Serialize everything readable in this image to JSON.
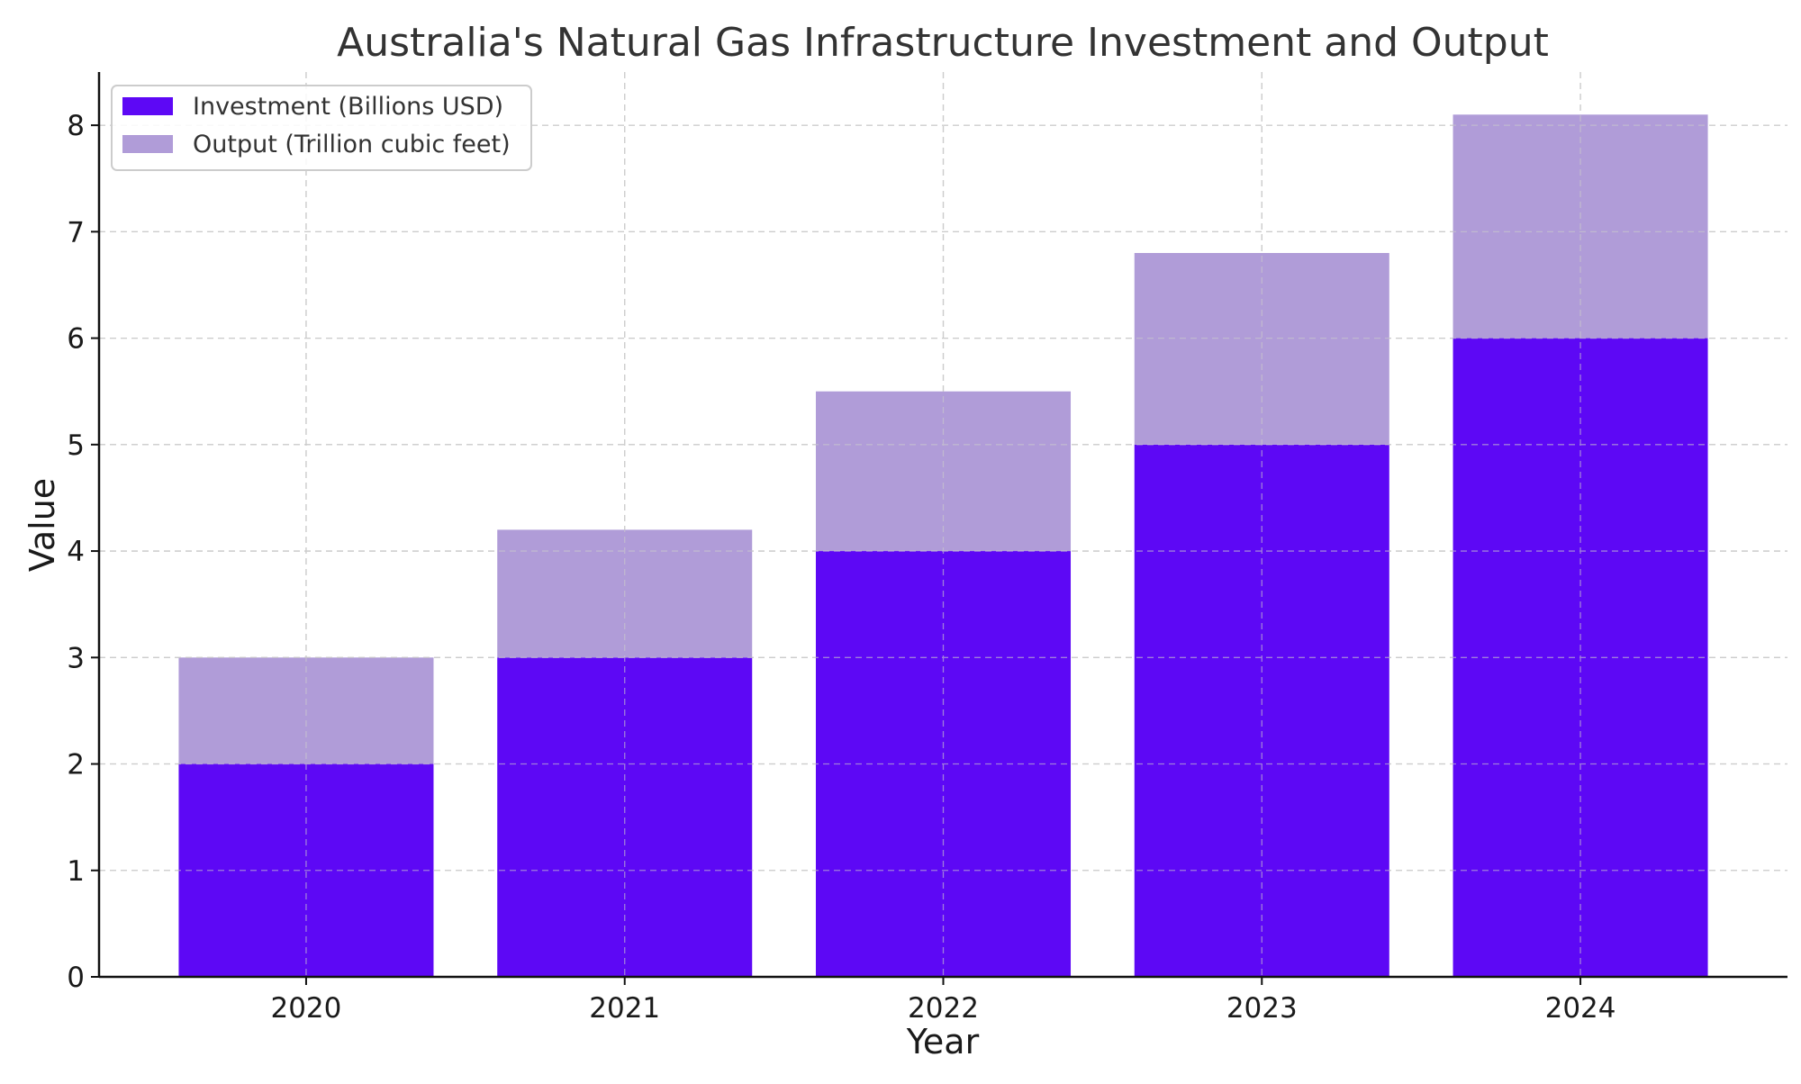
{
  "chart_data": {
    "type": "bar",
    "stacked": true,
    "title": "Australia's Natural Gas Infrastructure Investment and Output",
    "xlabel": "Year",
    "ylabel": "Value",
    "categories": [
      "2020",
      "2021",
      "2022",
      "2023",
      "2024"
    ],
    "series": [
      {
        "name": "Investment (Billions USD)",
        "values": [
          2,
          3,
          4,
          5,
          6
        ],
        "color": "#5d08f5"
      },
      {
        "name": "Output (Trillion cubic feet)",
        "values": [
          1,
          1.2,
          1.5,
          1.8,
          2.1
        ],
        "color": "#b09cd8"
      }
    ],
    "ylim": [
      0,
      8.5
    ],
    "yticks": [
      0,
      1,
      2,
      3,
      4,
      5,
      6,
      7,
      8
    ],
    "grid": true,
    "legend_position": "top-left"
  }
}
